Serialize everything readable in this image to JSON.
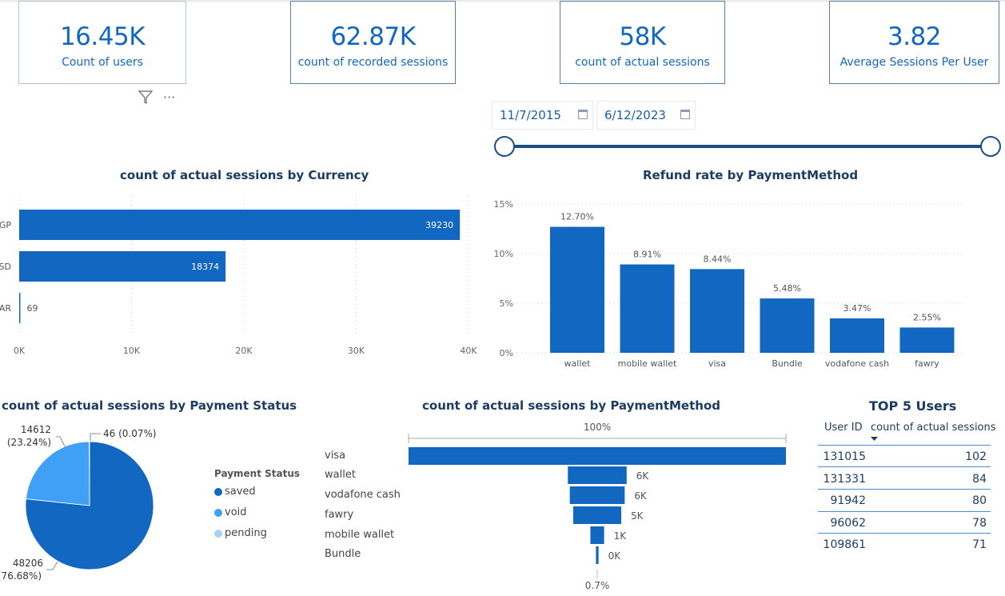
{
  "kpis": [
    {
      "value": "16.45K",
      "label": "Count of users"
    },
    {
      "value": "62.87K",
      "label": "count of recorded sessions"
    },
    {
      "value": "58K",
      "label": "count of actual sessions"
    },
    {
      "value": "3.82",
      "label": "Average Sessions Per User"
    }
  ],
  "visual_header": {
    "filter_icon": "filter-icon",
    "more_icon": "more-options-icon",
    "more_glyph": "···"
  },
  "date_slicer": {
    "start": "11/7/2015",
    "end": "6/12/2023",
    "range_fraction": [
      0,
      1
    ]
  },
  "colors": {
    "primary": "#1268c0",
    "light": "#3fa0f5",
    "lighter": "#a6d3fb",
    "title": "#1c3c63"
  },
  "chart_data": [
    {
      "type": "bar",
      "orientation": "horizontal",
      "title": "count of actual sessions by Currency",
      "categories": [
        "GP",
        "SD",
        "AR"
      ],
      "values": [
        39230,
        18374,
        69
      ],
      "value_labels": [
        "39230",
        "18374",
        "69"
      ],
      "xticks": [
        "0K",
        "10K",
        "20K",
        "30K",
        "40K"
      ],
      "xlim": [
        0,
        40000
      ],
      "grid": true
    },
    {
      "type": "bar",
      "title": "Refund rate by PaymentMethod",
      "categories": [
        "wallet",
        "mobile wallet",
        "visa",
        "Bundle",
        "vodafone cash",
        "fawry"
      ],
      "values": [
        12.7,
        8.91,
        8.44,
        5.48,
        3.47,
        2.55
      ],
      "value_labels": [
        "12.70%",
        "8.91%",
        "8.44%",
        "5.48%",
        "3.47%",
        "2.55%"
      ],
      "yticks": [
        "0%",
        "5%",
        "10%",
        "15%"
      ],
      "ylim": [
        0,
        15
      ],
      "grid": true
    },
    {
      "type": "pie",
      "title": "count of actual sessions by Payment Status",
      "legend_title": "Payment Status",
      "categories": [
        "saved",
        "void",
        "pending"
      ],
      "values": [
        48206,
        14612,
        46
      ],
      "labels": [
        [
          "48206",
          "(76.68%)"
        ],
        [
          "14612",
          "(23.24%)"
        ],
        [
          "46 (0.07%)"
        ]
      ],
      "legend_placement": "right"
    },
    {
      "type": "bar",
      "subtype": "funnel",
      "title": "count of actual sessions by PaymentMethod",
      "categories": [
        "visa",
        "wallet",
        "vodafone cash",
        "fawry",
        "mobile wallet",
        "Bundle"
      ],
      "values": [
        38500,
        6000,
        5600,
        4900,
        1400,
        270
      ],
      "value_labels": [
        "",
        "6K",
        "6K",
        "5K",
        "1K",
        "0K"
      ],
      "top_label": "100%",
      "bottom_label": "0.7%"
    },
    {
      "type": "table",
      "title": "TOP 5 Users",
      "columns": [
        "User ID",
        "count of actual sessions"
      ],
      "rows": [
        [
          "131015",
          "102"
        ],
        [
          "131331",
          "84"
        ],
        [
          "91942",
          "80"
        ],
        [
          "96062",
          "78"
        ],
        [
          "109861",
          "71"
        ]
      ]
    }
  ]
}
